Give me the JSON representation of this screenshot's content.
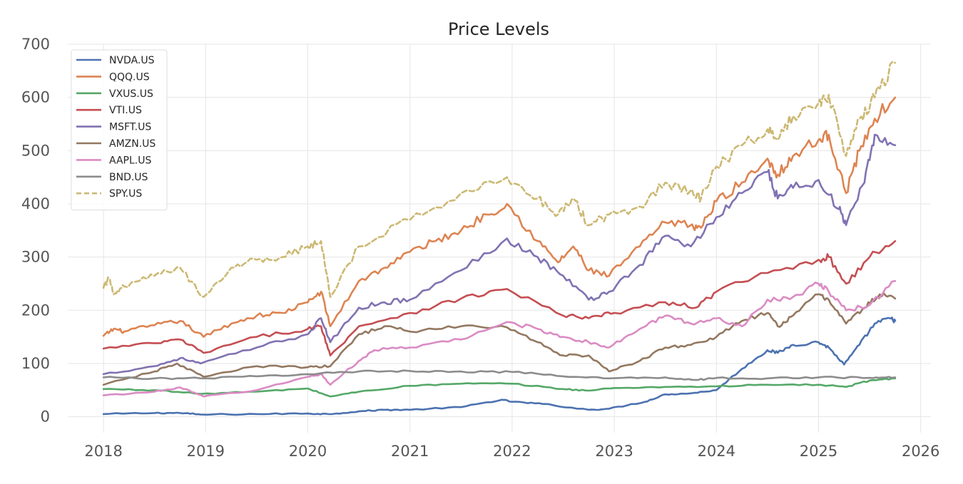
{
  "chart_data": {
    "type": "line",
    "title": "Price Levels",
    "xlabel": "",
    "ylabel": "",
    "xlim": [
      2017.65,
      2026.1
    ],
    "ylim": [
      -30,
      700
    ],
    "x_ticks": [
      2018,
      2019,
      2020,
      2021,
      2022,
      2023,
      2024,
      2025,
      2026
    ],
    "y_ticks": [
      0,
      100,
      200,
      300,
      400,
      500,
      600,
      700
    ],
    "grid": true,
    "legend_position": "top-left",
    "series": [
      {
        "name": "NVDA.US",
        "color": "#4c72b0",
        "dash": false,
        "x": [
          2018,
          2018.5,
          2018.75,
          2018.95,
          2019.5,
          2020.0,
          2020.2,
          2020.5,
          2020.75,
          2021.0,
          2021.5,
          2021.9,
          2022.0,
          2022.3,
          2022.75,
          2022.95,
          2023.3,
          2023.5,
          2023.75,
          2024.0,
          2024.25,
          2024.5,
          2024.6,
          2024.75,
          2025.0,
          2025.1,
          2025.25,
          2025.4,
          2025.55,
          2025.7,
          2025.75
        ],
        "y": [
          5,
          7,
          7,
          4,
          5,
          6,
          5,
          10,
          13,
          13,
          18,
          32,
          28,
          24,
          13,
          15,
          28,
          42,
          44,
          50,
          90,
          125,
          120,
          135,
          140,
          130,
          98,
          135,
          175,
          185,
          180
        ]
      },
      {
        "name": "QQQ.US",
        "color": "#dd8452",
        "dash": false,
        "x": [
          2018,
          2018.1,
          2018.2,
          2018.5,
          2018.75,
          2018.98,
          2019.25,
          2019.5,
          2019.75,
          2020.0,
          2020.13,
          2020.22,
          2020.5,
          2020.75,
          2021.0,
          2021.25,
          2021.5,
          2021.75,
          2021.95,
          2022.25,
          2022.45,
          2022.6,
          2022.75,
          2022.95,
          2023.25,
          2023.5,
          2023.75,
          2023.85,
          2024.0,
          2024.25,
          2024.5,
          2024.6,
          2024.75,
          2025.0,
          2025.1,
          2025.27,
          2025.4,
          2025.55,
          2025.75
        ],
        "y": [
          152,
          165,
          160,
          172,
          180,
          150,
          175,
          190,
          195,
          215,
          235,
          170,
          255,
          280,
          310,
          330,
          350,
          380,
          400,
          330,
          290,
          320,
          275,
          265,
          320,
          365,
          360,
          355,
          405,
          440,
          485,
          455,
          490,
          520,
          530,
          420,
          500,
          560,
          600
        ]
      },
      {
        "name": "VXUS.US",
        "color": "#55a868",
        "dash": false,
        "x": [
          2018,
          2018.5,
          2018.95,
          2019.5,
          2020.0,
          2020.22,
          2020.5,
          2021.0,
          2021.5,
          2022.0,
          2022.5,
          2022.75,
          2023.0,
          2023.5,
          2024.0,
          2024.5,
          2025.0,
          2025.27,
          2025.5,
          2025.75
        ],
        "y": [
          52,
          50,
          43,
          47,
          53,
          38,
          47,
          58,
          62,
          62,
          52,
          49,
          54,
          56,
          57,
          60,
          60,
          56,
          68,
          72
        ]
      },
      {
        "name": "VTI.US",
        "color": "#c44e52",
        "dash": false,
        "x": [
          2018,
          2018.5,
          2018.75,
          2018.98,
          2019.5,
          2020.0,
          2020.13,
          2020.22,
          2020.5,
          2021.0,
          2021.5,
          2021.95,
          2022.5,
          2022.75,
          2023.0,
          2023.5,
          2023.8,
          2024.0,
          2024.5,
          2025.0,
          2025.1,
          2025.27,
          2025.5,
          2025.75
        ],
        "y": [
          128,
          138,
          145,
          120,
          150,
          165,
          170,
          115,
          170,
          195,
          222,
          240,
          190,
          185,
          195,
          215,
          205,
          235,
          270,
          295,
          300,
          250,
          300,
          330
        ]
      },
      {
        "name": "MSFT.US",
        "color": "#8172b2",
        "dash": false,
        "x": [
          2018,
          2018.5,
          2018.75,
          2018.95,
          2019.5,
          2020.0,
          2020.13,
          2020.22,
          2020.5,
          2020.75,
          2021.0,
          2021.5,
          2021.95,
          2022.25,
          2022.5,
          2022.75,
          2022.95,
          2023.25,
          2023.5,
          2023.75,
          2024.0,
          2024.25,
          2024.5,
          2024.6,
          2024.75,
          2025.0,
          2025.2,
          2025.27,
          2025.45,
          2025.55,
          2025.75
        ],
        "y": [
          80,
          95,
          110,
          100,
          130,
          155,
          185,
          140,
          205,
          215,
          220,
          275,
          335,
          300,
          265,
          220,
          235,
          285,
          340,
          320,
          375,
          420,
          460,
          410,
          430,
          445,
          390,
          360,
          440,
          530,
          510
        ]
      },
      {
        "name": "AMZN.US",
        "color": "#937860",
        "dash": false,
        "x": [
          2018,
          2018.5,
          2018.72,
          2018.98,
          2019.5,
          2020.0,
          2020.22,
          2020.5,
          2020.75,
          2021.0,
          2021.5,
          2021.95,
          2022.25,
          2022.5,
          2022.75,
          2022.95,
          2023.25,
          2023.5,
          2023.75,
          2024.0,
          2024.25,
          2024.5,
          2024.6,
          2024.75,
          2025.0,
          2025.1,
          2025.27,
          2025.45,
          2025.6,
          2025.75
        ],
        "y": [
          60,
          85,
          100,
          75,
          95,
          93,
          95,
          155,
          170,
          160,
          170,
          168,
          140,
          115,
          115,
          85,
          105,
          130,
          135,
          150,
          180,
          195,
          170,
          190,
          230,
          220,
          175,
          205,
          230,
          222
        ]
      },
      {
        "name": "AAPL.US",
        "color": "#da8bc3",
        "dash": false,
        "x": [
          2018,
          2018.5,
          2018.75,
          2018.98,
          2019.5,
          2020.0,
          2020.13,
          2020.22,
          2020.5,
          2020.65,
          2021.0,
          2021.5,
          2021.95,
          2022.25,
          2022.5,
          2022.75,
          2022.95,
          2023.25,
          2023.5,
          2023.75,
          2024.0,
          2024.25,
          2024.5,
          2024.75,
          2025.0,
          2025.1,
          2025.27,
          2025.5,
          2025.75
        ],
        "y": [
          40,
          47,
          55,
          38,
          50,
          75,
          80,
          60,
          105,
          125,
          130,
          145,
          178,
          165,
          150,
          140,
          130,
          165,
          190,
          175,
          185,
          170,
          220,
          225,
          250,
          235,
          200,
          210,
          255
        ]
      },
      {
        "name": "BND.US",
        "color": "#8c8c8c",
        "dash": false,
        "x": [
          2018,
          2018.5,
          2018.95,
          2019.5,
          2020.0,
          2020.5,
          2021.0,
          2021.5,
          2022.0,
          2022.5,
          2022.95,
          2023.5,
          2023.8,
          2024.0,
          2024.5,
          2025.0,
          2025.5,
          2025.75
        ],
        "y": [
          74,
          72,
          72,
          76,
          80,
          85,
          86,
          85,
          84,
          76,
          72,
          74,
          69,
          73,
          72,
          74,
          73,
          74
        ]
      },
      {
        "name": "SPY.US",
        "color": "#ccb974",
        "dash": true,
        "x": [
          2018,
          2018.05,
          2018.1,
          2018.2,
          2018.5,
          2018.75,
          2018.98,
          2019.25,
          2019.5,
          2019.75,
          2020.0,
          2020.13,
          2020.22,
          2020.5,
          2021.0,
          2021.5,
          2021.95,
          2022.25,
          2022.45,
          2022.6,
          2022.75,
          2022.95,
          2023.25,
          2023.5,
          2023.75,
          2023.85,
          2024.0,
          2024.25,
          2024.5,
          2024.6,
          2024.75,
          2025.0,
          2025.1,
          2025.27,
          2025.4,
          2025.55,
          2025.75
        ],
        "y": [
          242,
          260,
          230,
          245,
          265,
          280,
          225,
          280,
          295,
          300,
          320,
          330,
          225,
          320,
          370,
          420,
          450,
          410,
          380,
          410,
          360,
          380,
          395,
          440,
          425,
          410,
          470,
          510,
          540,
          520,
          565,
          590,
          605,
          490,
          560,
          600,
          665
        ]
      }
    ]
  }
}
